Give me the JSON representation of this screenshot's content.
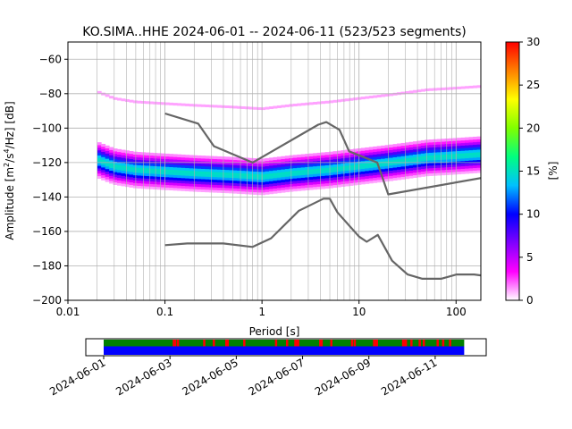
{
  "title": "KO.SIMA..HHE   2024-06-01 -- 2024-06-11  (523/523 segments)",
  "chart_data": [
    {
      "type": "heatmap",
      "description_kind": "probabilistic power spectral density",
      "xlabel": "Period [s]",
      "ylabel_parts": [
        "Amplitude [m",
        "2",
        "/s",
        "4",
        "/Hz] [dB]"
      ],
      "xscale": "log",
      "xlim": [
        0.01,
        180
      ],
      "ylim": [
        -200,
        -50
      ],
      "x_ticks": [
        {
          "value": 0.01,
          "label": "0.01"
        },
        {
          "value": 0.1,
          "label": "0.1"
        },
        {
          "value": 1,
          "label": "1"
        },
        {
          "value": 10,
          "label": "10"
        },
        {
          "value": 100,
          "label": "100"
        }
      ],
      "y_ticks": [
        {
          "value": -60,
          "label": "−60"
        },
        {
          "value": -80,
          "label": "−80"
        },
        {
          "value": -100,
          "label": "−100"
        },
        {
          "value": -120,
          "label": "−120"
        },
        {
          "value": -140,
          "label": "−140"
        },
        {
          "value": -160,
          "label": "−160"
        },
        {
          "value": -180,
          "label": "−180"
        },
        {
          "value": -200,
          "label": "−200"
        }
      ],
      "grid": true,
      "colorbar": {
        "label": "[%]",
        "range": [
          0,
          30
        ],
        "ticks": [
          {
            "value": 0,
            "label": "0"
          },
          {
            "value": 5,
            "label": "5"
          },
          {
            "value": 10,
            "label": "10"
          },
          {
            "value": 15,
            "label": "15"
          },
          {
            "value": 20,
            "label": "20"
          },
          {
            "value": 25,
            "label": "25"
          },
          {
            "value": 30,
            "label": "30"
          }
        ],
        "colors": [
          "#ffffff",
          "#ff00ff",
          "#8000ff",
          "#0000ff",
          "#00c0ff",
          "#00ff80",
          "#80ff00",
          "#ffff00",
          "#ff8000",
          "#ff0000"
        ]
      },
      "dominant_band": {
        "x": [
          0.02,
          0.03,
          0.05,
          0.1,
          0.2,
          0.5,
          1,
          2,
          5,
          10,
          20,
          50,
          100,
          180
        ],
        "center_db": [
          -118,
          -122,
          -124,
          -125,
          -126,
          -127,
          -128,
          -126,
          -124,
          -122,
          -120,
          -117,
          -116,
          -115
        ]
      },
      "series": [
        {
          "name": "NLNM",
          "color": "#666666",
          "x": [
            0.1,
            0.17,
            0.4,
            0.8,
            1.24,
            2.4,
            4.3,
            5,
            6,
            10,
            12,
            15.6,
            21.9,
            31.6,
            45,
            70,
            101,
            154,
            180
          ],
          "y": [
            -168,
            -167,
            -167,
            -169,
            -164,
            -148,
            -141,
            -141,
            -149,
            -163,
            -166,
            -162,
            -177,
            -185,
            -187.5,
            -187.5,
            -185,
            -185,
            -185.5
          ]
        },
        {
          "name": "NHNM",
          "color": "#666666",
          "x": [
            0.1,
            0.22,
            0.32,
            0.8,
            3.8,
            4.6,
            6.3,
            7.9,
            15.4,
            20,
            180
          ],
          "y": [
            -91.5,
            -97.4,
            -110.5,
            -120,
            -98,
            -96.5,
            -101,
            -113.5,
            -120,
            -138.5,
            -129
          ]
        }
      ]
    },
    {
      "type": "timeline",
      "date_labels": [
        "2024-06-01",
        "2024-06-03",
        "2024-06-05",
        "2024-06-07",
        "2024-06-09",
        "2024-06-11"
      ],
      "date_range": [
        "2024-06-01",
        "2024-06-12"
      ],
      "data_start": "2024-06-01",
      "data_end": "2024-06-11T21:00",
      "rows": [
        {
          "kind": "segments",
          "color": "#008000",
          "gap_color": "#ff0000"
        },
        {
          "kind": "coverage",
          "color": "#0000ff"
        }
      ],
      "gap_times": [
        "2024-06-03T02:00",
        "2024-06-03T03:00",
        "2024-06-03T05:00",
        "2024-06-04T00:00",
        "2024-06-04T07:00",
        "2024-06-04T16:00",
        "2024-06-04T17:00",
        "2024-06-05T05:00",
        "2024-06-06T04:00",
        "2024-06-06T12:00",
        "2024-06-06T18:00",
        "2024-06-06T19:00",
        "2024-06-06T20:00",
        "2024-06-07T12:00",
        "2024-06-07T13:00",
        "2024-06-07T20:00",
        "2024-06-08T11:00",
        "2024-06-08T13:00",
        "2024-06-09T03:00",
        "2024-06-09T04:00",
        "2024-06-09T05:00",
        "2024-06-10T00:00",
        "2024-06-10T01:00",
        "2024-06-10T02:00",
        "2024-06-10T06:00",
        "2024-06-10T12:00",
        "2024-06-10T15:00",
        "2024-06-11T01:00",
        "2024-06-11T05:00",
        "2024-06-11T10:00"
      ]
    }
  ]
}
